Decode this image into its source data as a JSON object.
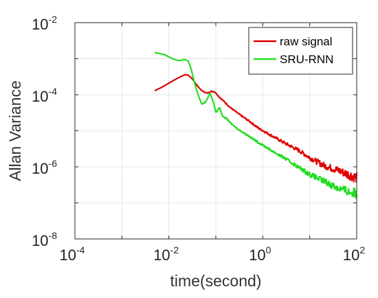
{
  "chart_data": {
    "type": "line",
    "xlabel": "time(second)",
    "ylabel": "Allan Variance",
    "xscale": "log",
    "yscale": "log",
    "xlim": [
      0.0001,
      100
    ],
    "ylim": [
      1e-08,
      0.01
    ],
    "x_ticks": [
      {
        "base": "10",
        "exp": "-4",
        "value": 0.0001
      },
      {
        "base": "10",
        "exp": "-2",
        "value": 0.01
      },
      {
        "base": "10",
        "exp": "0",
        "value": 1
      },
      {
        "base": "10",
        "exp": "2",
        "value": 100
      }
    ],
    "y_ticks": [
      {
        "base": "10",
        "exp": "-8",
        "value": 1e-08
      },
      {
        "base": "10",
        "exp": "-6",
        "value": 1e-06
      },
      {
        "base": "10",
        "exp": "-4",
        "value": 0.0001
      },
      {
        "base": "10",
        "exp": "-2",
        "value": 0.01
      }
    ],
    "grid": true,
    "legend_position": "top-right",
    "series": [
      {
        "name": "raw signal",
        "color": "#e00000",
        "points": [
          [
            0.005,
            0.00013
          ],
          [
            0.007,
            0.00016
          ],
          [
            0.01,
            0.00021
          ],
          [
            0.014,
            0.00027
          ],
          [
            0.018,
            0.00032
          ],
          [
            0.022,
            0.00036
          ],
          [
            0.026,
            0.00035
          ],
          [
            0.032,
            0.00027
          ],
          [
            0.04,
            0.00018
          ],
          [
            0.05,
            0.00013
          ],
          [
            0.065,
            0.00011
          ],
          [
            0.08,
            0.000125
          ],
          [
            0.095,
            0.00012
          ],
          [
            0.12,
            8.5e-05
          ],
          [
            0.15,
            6.5e-05
          ],
          [
            0.2,
            4.5e-05
          ],
          [
            0.3,
            3e-05
          ],
          [
            0.5,
            1.9e-05
          ],
          [
            0.8,
            1.2e-05
          ],
          [
            1.5,
            7.5e-06
          ],
          [
            3,
            4.5e-06
          ],
          [
            6,
            2.8e-06
          ],
          [
            10,
            1.8e-06
          ],
          [
            20,
            1.1e-06
          ],
          [
            40,
            8e-07
          ],
          [
            70,
            6e-07
          ],
          [
            100,
            5e-07
          ]
        ]
      },
      {
        "name": "SRU-RNN",
        "color": "#22dd22",
        "points": [
          [
            0.005,
            0.0015
          ],
          [
            0.008,
            0.0013
          ],
          [
            0.012,
            0.001
          ],
          [
            0.016,
            0.00088
          ],
          [
            0.022,
            0.00095
          ],
          [
            0.026,
            0.00085
          ],
          [
            0.03,
            0.0005
          ],
          [
            0.035,
            0.00022
          ],
          [
            0.042,
            0.0001
          ],
          [
            0.05,
            5.5e-05
          ],
          [
            0.06,
            6.2e-05
          ],
          [
            0.075,
            0.00011
          ],
          [
            0.09,
            6e-05
          ],
          [
            0.1,
            3.2e-05
          ],
          [
            0.12,
            4.5e-05
          ],
          [
            0.14,
            2.5e-05
          ],
          [
            0.17,
            2.2e-05
          ],
          [
            0.22,
            1.5e-05
          ],
          [
            0.3,
            1.1e-05
          ],
          [
            0.5,
            7.2e-06
          ],
          [
            0.8,
            4.8e-06
          ],
          [
            1.5,
            2.9e-06
          ],
          [
            3,
            1.7e-06
          ],
          [
            6,
            9.5e-07
          ],
          [
            10,
            6.2e-07
          ],
          [
            20,
            4e-07
          ],
          [
            40,
            2.6e-07
          ],
          [
            70,
            2e-07
          ],
          [
            100,
            1.8e-07
          ]
        ]
      }
    ]
  }
}
